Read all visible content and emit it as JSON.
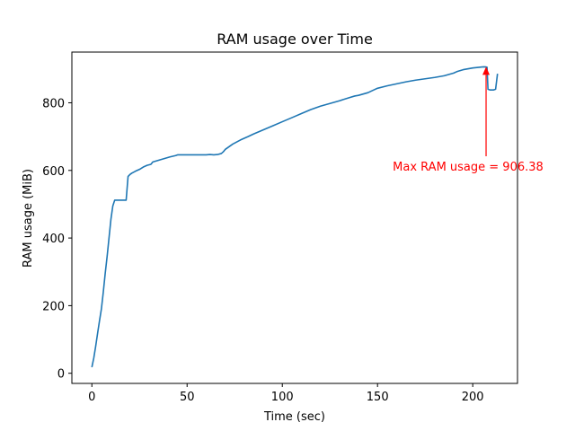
{
  "chart_data": {
    "type": "line",
    "title": "RAM usage over Time",
    "xlabel": "Time (sec)",
    "ylabel": "RAM usage (MiB)",
    "xlim": [
      -10.5,
      223.5
    ],
    "ylim": [
      -30,
      950
    ],
    "x_ticks": [
      0,
      50,
      100,
      150,
      200
    ],
    "y_ticks": [
      0,
      200,
      400,
      600,
      800
    ],
    "grid": false,
    "legend": "none",
    "series": [
      {
        "color": "#1f77b4",
        "x": [
          0,
          1,
          2,
          3,
          4,
          5,
          6,
          7,
          8,
          9,
          10,
          11,
          12,
          13,
          14,
          15,
          16,
          17,
          18,
          19,
          20,
          21,
          22,
          23,
          25,
          27,
          29,
          31,
          32,
          35,
          38,
          41,
          44,
          45,
          50,
          55,
          60,
          62,
          64,
          66,
          68,
          69,
          70,
          72,
          74,
          76,
          78,
          80,
          82,
          85,
          90,
          95,
          100,
          105,
          110,
          115,
          120,
          125,
          130,
          135,
          138,
          140,
          145,
          148,
          150,
          155,
          160,
          165,
          170,
          175,
          180,
          185,
          190,
          192,
          195,
          200,
          205,
          206,
          207,
          207.5,
          208,
          209,
          210,
          211,
          212,
          213
        ],
        "y": [
          18,
          45,
          80,
          118,
          155,
          190,
          240,
          295,
          345,
          400,
          455,
          495,
          512,
          512,
          512,
          512,
          512,
          512,
          512,
          582,
          588,
          592,
          595,
          598,
          603,
          610,
          615,
          618,
          625,
          630,
          635,
          640,
          644,
          646,
          646,
          646,
          646,
          647,
          646,
          647,
          650,
          655,
          662,
          670,
          678,
          684,
          690,
          695,
          700,
          708,
          720,
          732,
          744,
          756,
          768,
          780,
          790,
          798,
          806,
          815,
          820,
          822,
          830,
          838,
          843,
          850,
          856,
          862,
          867,
          871,
          875,
          880,
          888,
          893,
          898,
          903,
          906,
          906.38,
          906,
          905,
          840,
          838,
          838,
          838,
          840,
          886
        ]
      }
    ],
    "annotations": [
      {
        "text": "Max RAM usage = 906.38",
        "xy": [
          207,
          906.38
        ],
        "xytext": [
          158,
          610
        ],
        "color": "#ff0000"
      }
    ]
  }
}
